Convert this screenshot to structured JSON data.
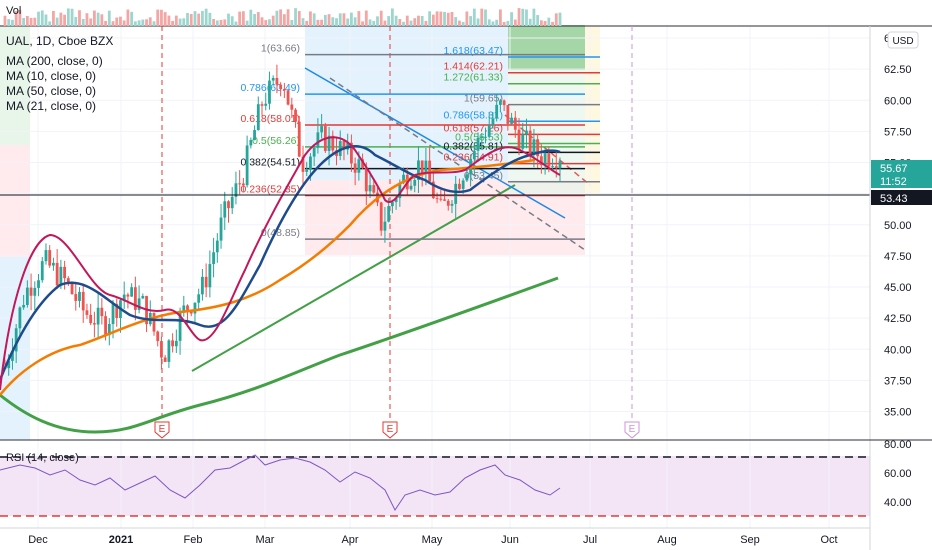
{
  "header": {
    "vol_label": "Vol",
    "symbol_line": "UAL, 1D, Cboe BZX",
    "indicators": [
      "MA (200, close, 0)",
      "MA (10, close, 0)",
      "MA (50, close, 0)",
      "MA (21, close, 0)"
    ]
  },
  "axis": {
    "currency": "USD",
    "price_ticks": [
      "65.00",
      "62.50",
      "60.00",
      "57.50",
      "55.00",
      "52.50",
      "50.00",
      "47.50",
      "45.00",
      "42.50",
      "40.00",
      "37.50",
      "35.00"
    ],
    "rsi_ticks": [
      "80.00",
      "60.00",
      "40.00"
    ],
    "time_labels": [
      "Dec",
      "2021",
      "Feb",
      "Mar",
      "Apr",
      "May",
      "Jun",
      "Jul",
      "Aug",
      "Sep",
      "Oct"
    ]
  },
  "price_badges": {
    "last_price": "55.67",
    "countdown": "11:52",
    "level_price": "53.43"
  },
  "fib_left": [
    "1(63.66)",
    "0.786(60.49)",
    "0.618(58.01)",
    "0.5(56.26)",
    "0.382(54.51)",
    "0.236(52.35)",
    "0(48.85)"
  ],
  "fib_right": [
    "1.618(63.47)",
    "1.414(62.21)",
    "1.272(61.33)",
    "1(59.65)",
    "0.786(58.31)",
    "0.618(57.26)",
    "0.5(56.53)",
    "0.382(55.81)",
    "0.236(54.91)",
    "0(53.45)"
  ],
  "earnings_marker": "E",
  "rsi": {
    "label": "RSI (14, close)"
  },
  "colors": {
    "up": "#26a69a",
    "down": "#ef5350",
    "ma200": "#43a047",
    "ma10": "#c2185b",
    "ma50": "#f57c00",
    "ma21": "#1e4b8c",
    "rsi": "#7e57c2"
  },
  "chart_data": {
    "type": "candlestick",
    "symbol": "UAL",
    "interval": "1D",
    "ylim": [
      34,
      67
    ],
    "rsi_levels": [
      70,
      30
    ],
    "price_points": [
      {
        "x": "Nov 20",
        "close": 38.5
      },
      {
        "x": "Dec 1",
        "close": 44.5
      },
      {
        "x": "Dec 10",
        "close": 47.0
      },
      {
        "x": "Dec 18",
        "close": 45.5
      },
      {
        "x": "Dec 28",
        "close": 43.0
      },
      {
        "x": "Jan 8",
        "close": 42.0
      },
      {
        "x": "Jan 15",
        "close": 44.5
      },
      {
        "x": "Jan 22",
        "close": 43.5
      },
      {
        "x": "Jan 29",
        "close": 39.5
      },
      {
        "x": "Feb 8",
        "close": 43.0
      },
      {
        "x": "Feb 16",
        "close": 45.0
      },
      {
        "x": "Feb 24",
        "close": 50.5
      },
      {
        "x": "Mar 4",
        "close": 54.0
      },
      {
        "x": "Mar 12",
        "close": 60.0
      },
      {
        "x": "Mar 18",
        "close": 62.0
      },
      {
        "x": "Mar 25",
        "close": 55.0
      },
      {
        "x": "Apr 1",
        "close": 57.0
      },
      {
        "x": "Apr 9",
        "close": 56.0
      },
      {
        "x": "Apr 16",
        "close": 54.5
      },
      {
        "x": "Apr 20",
        "close": 50.0
      },
      {
        "x": "Apr 27",
        "close": 53.5
      },
      {
        "x": "May 5",
        "close": 55.0
      },
      {
        "x": "May 12",
        "close": 51.0
      },
      {
        "x": "May 20",
        "close": 54.0
      },
      {
        "x": "May 28",
        "close": 57.0
      },
      {
        "x": "Jun 4",
        "close": 59.5
      },
      {
        "x": "Jun 10",
        "close": 57.0
      },
      {
        "x": "Jun 16",
        "close": 55.5
      },
      {
        "x": "Jun 23",
        "close": 55.67
      }
    ]
  }
}
